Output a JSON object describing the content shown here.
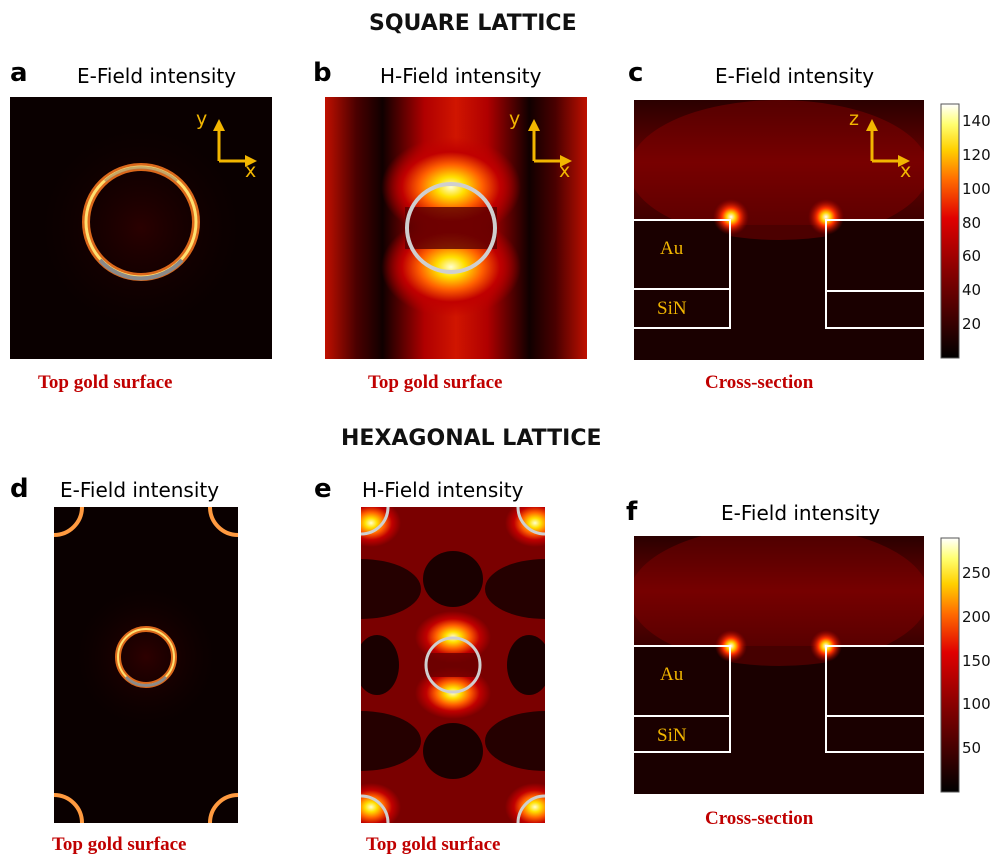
{
  "square_section": {
    "title": "SQUARE LATTICE"
  },
  "hexagonal_section": {
    "title": "HEXAGONAL LATTICE"
  },
  "panels": {
    "a": {
      "letter": "a",
      "heading": "E-Field intensity",
      "caption": "Top gold surface",
      "axis_vertical": "y",
      "axis_horizontal": "x"
    },
    "b": {
      "letter": "b",
      "heading": "H-Field intensity",
      "caption": "Top gold surface",
      "axis_vertical": "y",
      "axis_horizontal": "x"
    },
    "c": {
      "letter": "c",
      "heading": "E-Field intensity",
      "caption": "Cross-section",
      "axis_vertical": "z",
      "axis_horizontal": "x",
      "layer_top": "Au",
      "layer_bottom": "SiN"
    },
    "d": {
      "letter": "d",
      "heading": "E-Field intensity",
      "caption": "Top gold surface"
    },
    "e": {
      "letter": "e",
      "heading": "H-Field intensity",
      "caption": "Top gold surface"
    },
    "f": {
      "letter": "f",
      "heading": "E-Field intensity",
      "caption": "Cross-section",
      "layer_top": "Au",
      "layer_bottom": "SiN"
    }
  },
  "colorbars": {
    "c": {
      "ticks": [
        "140",
        "120",
        "100",
        "80",
        "60",
        "40",
        "20"
      ],
      "range": [
        0,
        150
      ]
    },
    "f": {
      "ticks": [
        "250",
        "200",
        "150",
        "100",
        "50"
      ],
      "range": [
        0,
        290
      ]
    }
  },
  "colors": {
    "axis_arrow": "#f2b600",
    "caption": "#c00000",
    "colormap": [
      "#000000",
      "#3d0000",
      "#8b0000",
      "#e00000",
      "#ff6a00",
      "#ffd000",
      "#ffff70",
      "#ffffff"
    ]
  }
}
